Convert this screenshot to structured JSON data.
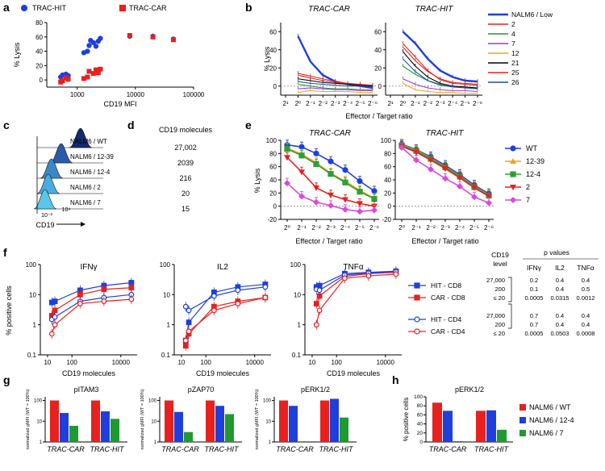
{
  "panels": {
    "a": {
      "letter": "a",
      "xlabel": "CD19 MFI",
      "ylabel": "% Lysis",
      "yticks": [
        "0",
        "20",
        "40",
        "60",
        "80"
      ],
      "xticks": [
        "1000",
        "10000",
        "100000"
      ],
      "legend": {
        "hit": "TRAC-HIT",
        "car": "TRAC-CAR"
      }
    },
    "b": {
      "letter": "b",
      "title_car": "TRAC-CAR",
      "title_hit": "TRAC-HIT",
      "ylabel": "% Lysis",
      "xlabel": "Effector / Target ratio",
      "yticks": [
        "0",
        "20",
        "40",
        "60"
      ],
      "xticks": [
        "2¹",
        "2⁰",
        "2⁻¹",
        "2⁻²",
        "2⁻³",
        "2⁻⁴",
        "2⁻⁵",
        "2⁻⁶"
      ],
      "legend_title": "NALM6 / Low"
    },
    "c": {
      "letter": "c",
      "labels": [
        "NALM6 / WT",
        "NALM6 / 12-39",
        "NALM6 / 12-4",
        "NALM6 / 2",
        "NALM6 / 7"
      ],
      "xlabel": "CD19",
      "xticks": [
        "10⁻²",
        "10⁴"
      ]
    },
    "d": {
      "letter": "d",
      "title": "CD19 molecules",
      "values": [
        "27,002",
        "2039",
        "216",
        "20",
        "15"
      ]
    },
    "e": {
      "letter": "e",
      "title_car": "TRAC-CAR",
      "title_hit": "TRAC-HIT",
      "ylabel": "% Lysis",
      "xlabel": "Effector / Target ratio",
      "yticks": [
        "-20",
        "0",
        "20",
        "40",
        "60",
        "80",
        "100"
      ],
      "xticks": [
        "2⁰",
        "2⁻¹",
        "2⁻²",
        "2⁻³",
        "2⁻⁴",
        "2⁻⁵",
        "2⁻⁶"
      ]
    },
    "f": {
      "letter": "f",
      "ylabel": "% positive cells",
      "xlabel": "CD19 molecules",
      "titles": [
        "IFNγ",
        "IL2",
        "TNFα"
      ],
      "yticks": [
        "0.1",
        "1",
        "10",
        "100"
      ],
      "xticks": [
        "10",
        "100",
        "10000"
      ],
      "legend": [
        "HIT - CD8",
        "CAR - CD8",
        "HIT - CD4",
        "CAR - CD4"
      ],
      "pvalues": {
        "header_level": "CD19 level",
        "header": "p values",
        "cols": [
          "IFNγ",
          "IL2",
          "TNFα"
        ],
        "rows": [
          {
            "level": "27,000",
            "vals": [
              "0.2",
              "0.4",
              "0.4"
            ]
          },
          {
            "level": "200",
            "vals": [
              "0.1",
              "0.4",
              "0.5"
            ]
          },
          {
            "level": "≤ 20",
            "vals": [
              "0.0005",
              "0.0315",
              "0.0012"
            ]
          },
          {
            "level": "27,000",
            "vals": [
              "0.7",
              "0.4",
              "0.4"
            ]
          },
          {
            "level": "200",
            "vals": [
              "0.7",
              "0.4",
              "0.4"
            ]
          },
          {
            "level": "≤ 20",
            "vals": [
              "0.0005",
              "0.0503",
              "0.0008"
            ]
          }
        ]
      }
    },
    "g": {
      "letter": "g",
      "titles": [
        "pITAM3",
        "pZAP70",
        "pERK1/2"
      ],
      "ylabel": "normalized gMFI (WT = 100%)",
      "yticks": [
        "1",
        "10",
        "100"
      ],
      "groups": [
        "TRAC-CAR",
        "TRAC-HIT"
      ]
    },
    "h": {
      "letter": "h",
      "title": "pERK1/2",
      "ylabel": "% positive cells",
      "yticks": [
        "0",
        "20",
        "40",
        "60",
        "80",
        "100"
      ],
      "groups": [
        "TRAC-CAR",
        "TRAC-HIT"
      ],
      "legend": [
        "NALM6 / WT",
        "NALM6 / 12-4",
        "NALM6 / 7"
      ]
    }
  },
  "colors": {
    "blue": "#1f3fdc",
    "red": "#e8201e",
    "green": "#1f9a2e",
    "orange": "#f4a11c",
    "purple": "#d94ad9",
    "navy": "#1b1f7a"
  },
  "chart_data": [
    {
      "panel": "a",
      "type": "scatter",
      "title": "",
      "xlabel": "CD19 MFI",
      "ylabel": "% Lysis",
      "xlim": [
        300,
        100000
      ],
      "ylim": [
        -10,
        80
      ],
      "series": [
        {
          "name": "TRAC-HIT",
          "x": [
            520,
            560,
            640,
            700,
            1300,
            1500,
            1600,
            1700,
            1900,
            2100,
            2300,
            2500,
            8000,
            20000,
            45000
          ],
          "y": [
            4,
            7,
            8,
            6,
            38,
            40,
            48,
            55,
            52,
            47,
            54,
            58,
            61,
            61,
            57
          ]
        },
        {
          "name": "TRAC-CAR",
          "x": [
            520,
            560,
            640,
            700,
            1300,
            1500,
            1600,
            1900,
            2100,
            2300,
            2500,
            8000,
            20000,
            45000
          ],
          "y": [
            -3,
            -1,
            3,
            1,
            2,
            4,
            12,
            9,
            14,
            10,
            15,
            62,
            60,
            56
          ]
        }
      ]
    },
    {
      "panel": "b-car",
      "type": "line",
      "title": "TRAC-CAR",
      "xlabel": "Effector / Target ratio",
      "ylabel": "% Lysis",
      "categories": [
        "2¹",
        "2⁰",
        "2⁻¹",
        "2⁻²",
        "2⁻³",
        "2⁻⁴",
        "2⁻⁵",
        "2⁻⁶"
      ],
      "ylim": [
        -10,
        70
      ],
      "series": [
        {
          "name": "NALM6 / Low",
          "values": [
            null,
            55,
            27,
            12,
            5,
            2,
            0,
            -2
          ]
        },
        {
          "name": "2",
          "values": [
            null,
            12,
            9,
            6,
            4,
            2,
            1,
            0
          ]
        },
        {
          "name": "4",
          "values": [
            null,
            2,
            0,
            -2,
            -3,
            -3,
            -4,
            -4
          ]
        },
        {
          "name": "7",
          "values": [
            null,
            -3,
            -2,
            -3,
            -4,
            -4,
            -5,
            -5
          ]
        },
        {
          "name": "12",
          "values": [
            null,
            -7,
            -5,
            -6,
            -6,
            -6,
            -7,
            -7
          ]
        },
        {
          "name": "21",
          "values": [
            null,
            8,
            6,
            4,
            3,
            2,
            1,
            0
          ]
        },
        {
          "name": "25",
          "values": [
            null,
            14,
            11,
            8,
            5,
            3,
            2,
            1
          ]
        },
        {
          "name": "26",
          "values": [
            null,
            5,
            3,
            2,
            1,
            0,
            0,
            -1
          ]
        }
      ]
    },
    {
      "panel": "b-hit",
      "type": "line",
      "title": "TRAC-HIT",
      "xlabel": "Effector / Target ratio",
      "ylabel": "% Lysis",
      "categories": [
        "2¹",
        "2⁰",
        "2⁻¹",
        "2⁻²",
        "2⁻³",
        "2⁻⁴",
        "2⁻⁵",
        "2⁻⁶"
      ],
      "ylim": [
        -10,
        70
      ],
      "series": [
        {
          "name": "NALM6 / Low",
          "values": [
            null,
            60,
            47,
            30,
            17,
            10,
            6,
            5
          ]
        },
        {
          "name": "2",
          "values": [
            null,
            43,
            28,
            16,
            8,
            4,
            3,
            2
          ]
        },
        {
          "name": "4",
          "values": [
            null,
            22,
            13,
            6,
            2,
            0,
            -2,
            -2
          ]
        },
        {
          "name": "7",
          "values": [
            null,
            8,
            2,
            -2,
            -4,
            -5,
            -5,
            -6
          ]
        },
        {
          "name": "12",
          "values": [
            null,
            3,
            -4,
            -6,
            -7,
            -7,
            -8,
            -8
          ]
        },
        {
          "name": "21",
          "values": [
            null,
            38,
            22,
            10,
            3,
            0,
            -1,
            -2
          ]
        },
        {
          "name": "25",
          "values": [
            null,
            47,
            32,
            17,
            7,
            3,
            2,
            1
          ]
        },
        {
          "name": "26",
          "values": [
            null,
            30,
            16,
            6,
            1,
            -1,
            -2,
            -3
          ]
        }
      ]
    },
    {
      "panel": "e-car",
      "type": "line",
      "title": "TRAC-CAR",
      "xlabel": "Effector / Target ratio",
      "ylabel": "% Lysis",
      "categories": [
        "2⁰",
        "2⁻¹",
        "2⁻²",
        "2⁻³",
        "2⁻⁴",
        "2⁻⁵",
        "2⁻⁶"
      ],
      "ylim": [
        -20,
        100
      ],
      "series": [
        {
          "name": "WT",
          "values": [
            93,
            90,
            80,
            68,
            55,
            38,
            23
          ]
        },
        {
          "name": "12-39",
          "values": [
            88,
            79,
            66,
            50,
            38,
            24,
            12
          ]
        },
        {
          "name": "12-4",
          "values": [
            87,
            77,
            64,
            49,
            36,
            22,
            11
          ]
        },
        {
          "name": "2",
          "values": [
            74,
            52,
            28,
            17,
            10,
            4,
            0
          ]
        },
        {
          "name": "7",
          "values": [
            35,
            15,
            6,
            1,
            -5,
            -8,
            -6
          ]
        }
      ]
    },
    {
      "panel": "e-hit",
      "type": "line",
      "title": "TRAC-HIT",
      "xlabel": "Effector / Target ratio",
      "ylabel": "% Lysis",
      "categories": [
        "2⁰",
        "2⁻¹",
        "2⁻²",
        "2⁻³",
        "2⁻⁴",
        "2⁻⁵",
        "2⁻⁶"
      ],
      "ylim": [
        -20,
        100
      ],
      "series": [
        {
          "name": "WT",
          "values": [
            94,
            86,
            75,
            62,
            48,
            32,
            19
          ]
        },
        {
          "name": "12-39",
          "values": [
            93,
            85,
            73,
            60,
            46,
            30,
            17
          ]
        },
        {
          "name": "12-4",
          "values": [
            92,
            84,
            72,
            59,
            45,
            29,
            16
          ]
        },
        {
          "name": "2",
          "values": [
            91,
            82,
            70,
            57,
            43,
            28,
            15
          ]
        },
        {
          "name": "7",
          "values": [
            89,
            70,
            56,
            42,
            30,
            14,
            5
          ]
        }
      ]
    },
    {
      "panel": "f-IFNγ",
      "type": "line",
      "title": "IFNγ",
      "xlabel": "CD19 molecules",
      "ylabel": "% positive cells",
      "yscale": "log",
      "xscale": "log",
      "ylim": [
        0.1,
        100
      ],
      "x": [
        15,
        20,
        216,
        2039,
        27002
      ],
      "series": [
        {
          "name": "HIT - CD8",
          "values": [
            5.5,
            6,
            14,
            20,
            25
          ]
        },
        {
          "name": "CAR - CD8",
          "values": [
            2,
            3,
            10,
            15,
            17
          ]
        },
        {
          "name": "HIT - CD4",
          "values": [
            1.5,
            1.8,
            6,
            8,
            10
          ]
        },
        {
          "name": "CAR - CD4",
          "values": [
            0.5,
            1,
            5,
            6,
            7
          ]
        }
      ]
    },
    {
      "panel": "f-IL2",
      "type": "line",
      "title": "IL2",
      "xlabel": "CD19 molecules",
      "ylabel": "% positive cells",
      "yscale": "log",
      "xscale": "log",
      "ylim": [
        0.1,
        100
      ],
      "x": [
        15,
        20,
        216,
        2039,
        27002
      ],
      "series": [
        {
          "name": "HIT - CD8",
          "values": [
            0.3,
            1.2,
            12,
            18,
            22
          ]
        },
        {
          "name": "CAR - CD8",
          "values": [
            0.2,
            0.5,
            4,
            6,
            8
          ]
        },
        {
          "name": "HIT - CD4",
          "values": [
            4,
            3,
            9,
            14,
            18
          ]
        },
        {
          "name": "CAR - CD4",
          "values": [
            0.3,
            0.6,
            3,
            5,
            8
          ]
        }
      ]
    },
    {
      "panel": "f-TNFα",
      "type": "line",
      "title": "TNFα",
      "xlabel": "CD19 molecules",
      "ylabel": "% positive cells",
      "yscale": "log",
      "xscale": "log",
      "ylim": [
        0.1,
        100
      ],
      "x": [
        15,
        20,
        216,
        2039,
        27002
      ],
      "series": [
        {
          "name": "HIT - CD8",
          "values": [
            18,
            20,
            50,
            55,
            60
          ]
        },
        {
          "name": "CAR - CD8",
          "values": [
            5,
            9,
            40,
            50,
            55
          ]
        },
        {
          "name": "HIT - CD4",
          "values": [
            15,
            14,
            45,
            52,
            58
          ]
        },
        {
          "name": "CAR - CD4",
          "values": [
            1,
            3,
            35,
            42,
            48
          ]
        }
      ]
    },
    {
      "panel": "g-pITAM3",
      "type": "bar",
      "title": "pITAM3",
      "ylabel": "normalized gMFI (WT = 100%)",
      "yscale": "log",
      "ylim": [
        1,
        150
      ],
      "categories": [
        "TRAC-CAR",
        "TRAC-HIT"
      ],
      "series": [
        {
          "name": "NALM6 / WT",
          "values": [
            100,
            100
          ]
        },
        {
          "name": "NALM6 / 12-4",
          "values": [
            25,
            30
          ]
        },
        {
          "name": "NALM6 / 7",
          "values": [
            6,
            13
          ]
        }
      ]
    },
    {
      "panel": "g-pZAP70",
      "type": "bar",
      "title": "pZAP70",
      "ylabel": "normalized gMFI (WT = 100%)",
      "yscale": "log",
      "ylim": [
        1,
        150
      ],
      "categories": [
        "TRAC-CAR",
        "TRAC-HIT"
      ],
      "series": [
        {
          "name": "NALM6 / WT",
          "values": [
            100,
            100
          ]
        },
        {
          "name": "NALM6 / 12-4",
          "values": [
            28,
            55
          ]
        },
        {
          "name": "NALM6 / 7",
          "values": [
            3,
            22
          ]
        }
      ]
    },
    {
      "panel": "g-pERK1/2",
      "type": "bar",
      "title": "pERK1/2",
      "ylabel": "normalized gMFI (WT = 100%)",
      "yscale": "log",
      "ylim": [
        1,
        150
      ],
      "categories": [
        "TRAC-CAR",
        "TRAC-HIT"
      ],
      "series": [
        {
          "name": "NALM6 / WT",
          "values": [
            100,
            100
          ]
        },
        {
          "name": "NALM6 / 12-4",
          "values": [
            55,
            120
          ]
        },
        {
          "name": "NALM6 / 7",
          "values": [
            null,
            15
          ]
        }
      ]
    },
    {
      "panel": "h",
      "type": "bar",
      "title": "pERK1/2",
      "ylabel": "% positive cells",
      "ylim": [
        0,
        100
      ],
      "categories": [
        "TRAC-CAR",
        "TRAC-HIT"
      ],
      "series": [
        {
          "name": "NALM6 / WT",
          "values": [
            87,
            69
          ]
        },
        {
          "name": "NALM6 / 12-4",
          "values": [
            69,
            70
          ]
        },
        {
          "name": "NALM6 / 7",
          "values": [
            2,
            27
          ]
        }
      ]
    }
  ]
}
